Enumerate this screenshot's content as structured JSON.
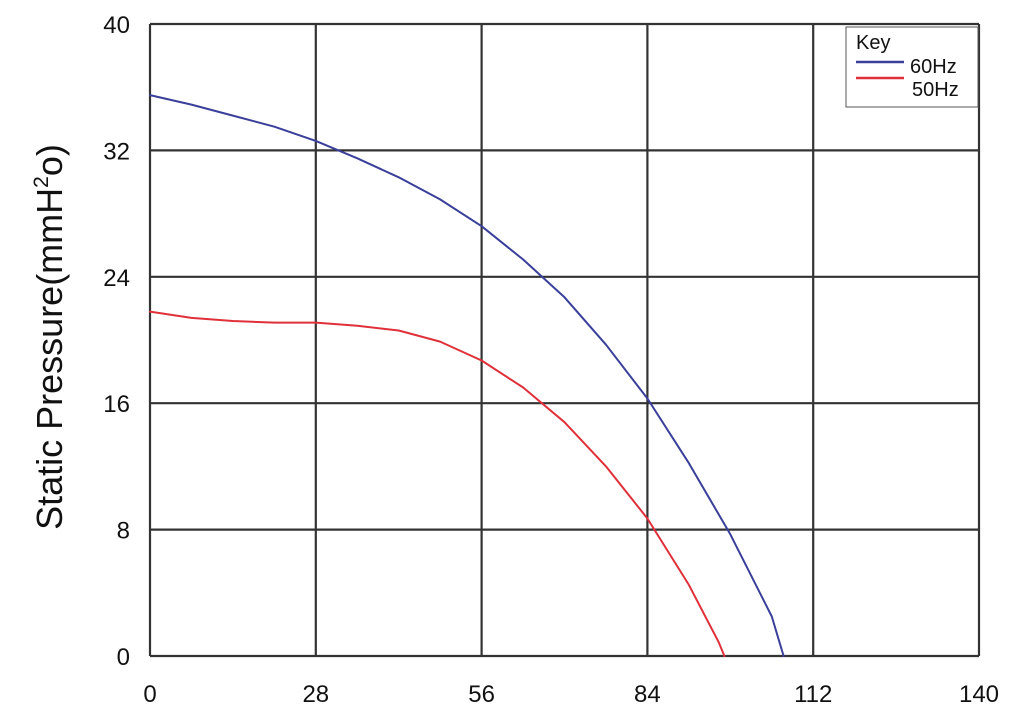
{
  "chart_data": {
    "type": "line",
    "title": "",
    "ylabel": {
      "prefix": "Static Pressure(mmH",
      "sup1": "2",
      "mid": "o",
      "suffix": ")"
    },
    "xlabel": "",
    "xlim": [
      0,
      140
    ],
    "ylim": [
      0,
      40
    ],
    "x_ticks": [
      0,
      28,
      56,
      84,
      112,
      140
    ],
    "y_ticks": [
      0,
      8,
      16,
      24,
      32,
      40
    ],
    "grid": true,
    "legend": {
      "title": "Key",
      "placement": "top-right"
    },
    "series": [
      {
        "name": "60Hz",
        "color": "#3a3f9a",
        "points": [
          [
            0,
            35.5
          ],
          [
            7,
            34.9
          ],
          [
            14,
            34.2
          ],
          [
            21,
            33.5
          ],
          [
            28,
            32.6
          ],
          [
            35,
            31.5
          ],
          [
            42,
            30.3
          ],
          [
            49,
            28.9
          ],
          [
            56,
            27.2
          ],
          [
            63,
            25.1
          ],
          [
            70,
            22.7
          ],
          [
            77,
            19.7
          ],
          [
            84,
            16.3
          ],
          [
            91,
            12.2
          ],
          [
            98,
            7.7
          ],
          [
            105,
            2.5
          ],
          [
            107,
            0
          ]
        ]
      },
      {
        "name": "50Hz",
        "color": "#e0303a",
        "points": [
          [
            0,
            21.8
          ],
          [
            7,
            21.4
          ],
          [
            14,
            21.2
          ],
          [
            21,
            21.1
          ],
          [
            28,
            21.1
          ],
          [
            35,
            20.9
          ],
          [
            42,
            20.6
          ],
          [
            49,
            19.9
          ],
          [
            56,
            18.7
          ],
          [
            63,
            17.0
          ],
          [
            70,
            14.8
          ],
          [
            77,
            12.0
          ],
          [
            84,
            8.7
          ],
          [
            91,
            4.5
          ],
          [
            96,
            0.9
          ],
          [
            97,
            0
          ]
        ]
      }
    ]
  }
}
